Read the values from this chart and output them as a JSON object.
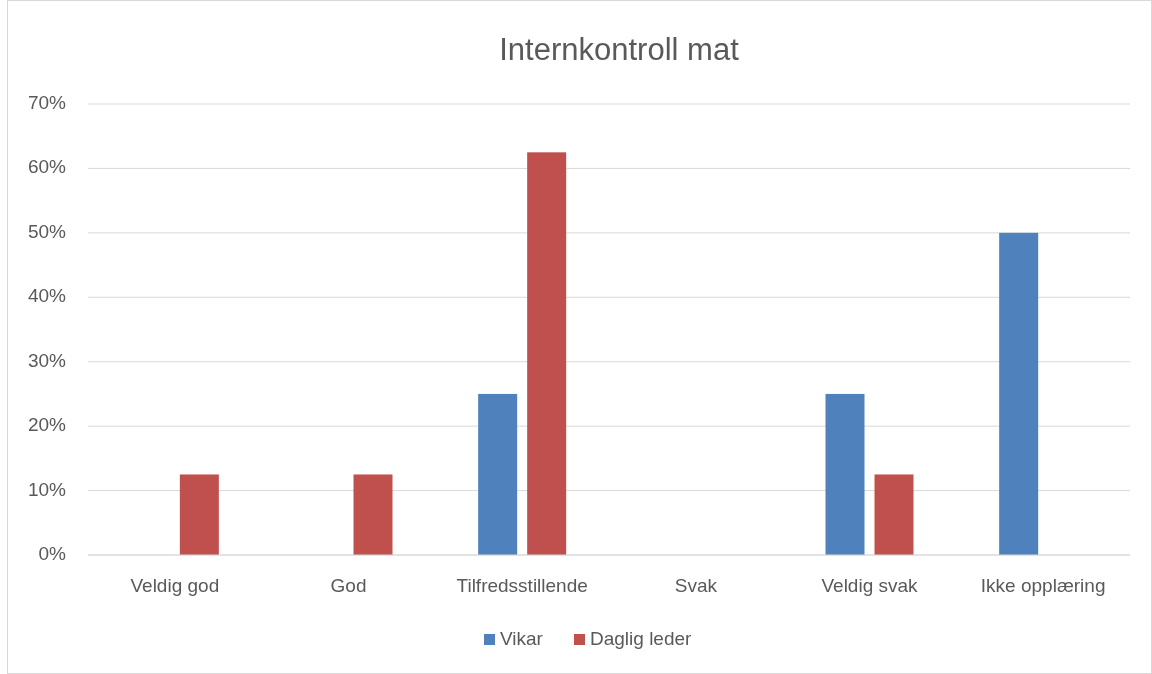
{
  "chart_data": {
    "type": "bar",
    "title": "Internkontroll mat",
    "categories": [
      "Veldig god",
      "God",
      "Tilfredsstillende",
      "Svak",
      "Veldig svak",
      "Ikke opplæring"
    ],
    "series": [
      {
        "name": "Vikar",
        "color": "#4f81bd",
        "values": [
          0,
          0,
          25,
          0,
          25,
          50
        ]
      },
      {
        "name": "Daglig leder",
        "color": "#c0504d",
        "values": [
          12.5,
          12.5,
          62.5,
          0,
          12.5,
          0
        ]
      }
    ],
    "ylim": [
      0,
      70
    ],
    "yticks": [
      {
        "value": 0,
        "label": "0%"
      },
      {
        "value": 10,
        "label": "10%"
      },
      {
        "value": 20,
        "label": "20%"
      },
      {
        "value": 30,
        "label": "30%"
      },
      {
        "value": 40,
        "label": "40%"
      },
      {
        "value": 50,
        "label": "50%"
      },
      {
        "value": 60,
        "label": "60%"
      },
      {
        "value": 70,
        "label": "70%"
      }
    ],
    "grid": "y",
    "legend": "bottom"
  }
}
